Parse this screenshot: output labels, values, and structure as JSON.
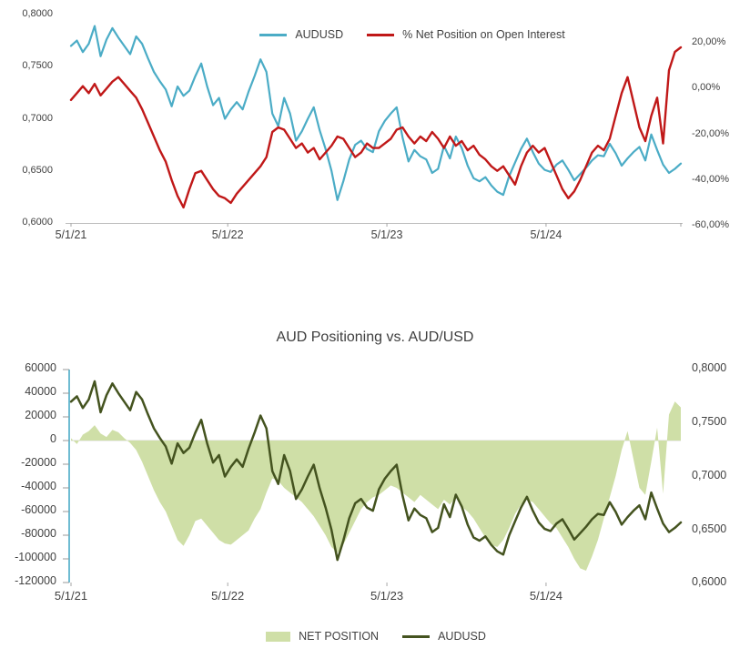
{
  "chart_data": [
    {
      "type": "line",
      "title": "",
      "x_tick_labels": [
        "5/1/21",
        "5/1/22",
        "5/1/23",
        "5/1/24"
      ],
      "left_axis": {
        "range": [
          0.6,
          0.8
        ],
        "ticks": [
          {
            "label": "0,8000",
            "value": 0.8
          },
          {
            "label": "0,7500",
            "value": 0.75
          },
          {
            "label": "0,7000",
            "value": 0.7
          },
          {
            "label": "0,6500",
            "value": 0.65
          },
          {
            "label": "0,6000",
            "value": 0.6
          }
        ]
      },
      "right_axis": {
        "range": [
          -60,
          20
        ],
        "ticks": [
          {
            "label": "20,00%",
            "value": 20
          },
          {
            "label": "0,00%",
            "value": 0
          },
          {
            "label": "-20,00%",
            "value": -20
          },
          {
            "label": "-40,00%",
            "value": -40
          },
          {
            "label": "-60,00%",
            "value": -60
          }
        ]
      },
      "series": [
        {
          "name": "AUDUSD",
          "axis": "left",
          "type": "line",
          "color": "#4BACC6",
          "width": 2.2,
          "values": [
            0.77,
            0.775,
            0.764,
            0.772,
            0.789,
            0.76,
            0.776,
            0.787,
            0.778,
            0.77,
            0.762,
            0.779,
            0.772,
            0.758,
            0.745,
            0.736,
            0.728,
            0.712,
            0.731,
            0.722,
            0.727,
            0.741,
            0.753,
            0.731,
            0.713,
            0.72,
            0.7,
            0.709,
            0.716,
            0.709,
            0.726,
            0.741,
            0.757,
            0.745,
            0.705,
            0.693,
            0.72,
            0.705,
            0.679,
            0.688,
            0.7,
            0.711,
            0.689,
            0.671,
            0.65,
            0.622,
            0.64,
            0.661,
            0.675,
            0.679,
            0.671,
            0.668,
            0.688,
            0.698,
            0.705,
            0.711,
            0.682,
            0.659,
            0.67,
            0.664,
            0.661,
            0.648,
            0.652,
            0.674,
            0.662,
            0.683,
            0.672,
            0.655,
            0.643,
            0.64,
            0.644,
            0.636,
            0.63,
            0.627,
            0.645,
            0.658,
            0.671,
            0.681,
            0.668,
            0.657,
            0.651,
            0.649,
            0.656,
            0.66,
            0.651,
            0.641,
            0.647,
            0.653,
            0.66,
            0.665,
            0.664,
            0.676,
            0.667,
            0.655,
            0.662,
            0.668,
            0.673,
            0.66,
            0.685,
            0.67,
            0.656,
            0.648,
            0.652,
            0.657
          ]
        },
        {
          "name": "% Net Position on Open Interest",
          "axis": "right",
          "type": "line",
          "color": "#C01818",
          "width": 2.4,
          "values": [
            -5,
            -2,
            1,
            -2,
            2,
            -3,
            0,
            3,
            5,
            2,
            -1,
            -4,
            -9,
            -15,
            -21,
            -27,
            -32,
            -40,
            -47,
            -52,
            -44,
            -37,
            -36,
            -40,
            -44,
            -47,
            -48,
            -50,
            -46,
            -43,
            -40,
            -37,
            -34,
            -30,
            -19,
            -17,
            -18,
            -22,
            -26,
            -24,
            -28,
            -26,
            -31,
            -28,
            -25,
            -21,
            -22,
            -26,
            -30,
            -28,
            -24,
            -26,
            -26,
            -24,
            -22,
            -18,
            -17,
            -21,
            -24,
            -21,
            -23,
            -19,
            -22,
            -26,
            -21,
            -25,
            -23,
            -27,
            -25,
            -29,
            -31,
            -34,
            -36,
            -34,
            -38,
            -42,
            -34,
            -28,
            -25,
            -28,
            -26,
            -32,
            -38,
            -44,
            -48,
            -45,
            -40,
            -34,
            -28,
            -25,
            -27,
            -22,
            -12,
            -2,
            5,
            -6,
            -17,
            -23,
            -12,
            -4,
            -24,
            8,
            16,
            18
          ]
        }
      ]
    },
    {
      "type": "area+line",
      "title": "AUD Positioning vs. AUD/USD",
      "x_tick_labels": [
        "5/1/21",
        "5/1/22",
        "5/1/23",
        "5/1/24"
      ],
      "left_axis": {
        "range": [
          -120000,
          60000
        ],
        "ticks": [
          {
            "label": "60000",
            "value": 60000
          },
          {
            "label": "40000",
            "value": 40000
          },
          {
            "label": "20000",
            "value": 20000
          },
          {
            "label": "0",
            "value": 0
          },
          {
            "label": "-20000",
            "value": -20000
          },
          {
            "label": "-40000",
            "value": -40000
          },
          {
            "label": "-60000",
            "value": -60000
          },
          {
            "label": "-80000",
            "value": -80000
          },
          {
            "label": "-100000",
            "value": -100000
          },
          {
            "label": "-120000",
            "value": -120000
          }
        ]
      },
      "right_axis": {
        "range": [
          0.6,
          0.8
        ],
        "ticks": [
          {
            "label": "0,8000",
            "value": 0.8
          },
          {
            "label": "0,7500",
            "value": 0.75
          },
          {
            "label": "0,7000",
            "value": 0.7
          },
          {
            "label": "0,6500",
            "value": 0.65
          },
          {
            "label": "0,6000",
            "value": 0.6
          }
        ]
      },
      "series": [
        {
          "name": "NET POSITION",
          "axis": "left",
          "type": "area",
          "color": "#CFDFA7",
          "values": [
            2000,
            -3000,
            5000,
            8000,
            13000,
            6000,
            3000,
            9000,
            7000,
            2000,
            -2000,
            -8000,
            -18000,
            -30000,
            -42000,
            -52000,
            -60000,
            -72000,
            -84000,
            -89000,
            -80000,
            -68000,
            -66000,
            -72000,
            -78000,
            -84000,
            -87000,
            -88000,
            -84000,
            -80000,
            -76000,
            -66000,
            -58000,
            -44000,
            -32000,
            -34000,
            -40000,
            -44000,
            -48000,
            -52000,
            -58000,
            -64000,
            -72000,
            -80000,
            -90000,
            -95000,
            -88000,
            -78000,
            -68000,
            -58000,
            -52000,
            -48000,
            -46000,
            -42000,
            -38000,
            -40000,
            -44000,
            -48000,
            -52000,
            -46000,
            -50000,
            -54000,
            -58000,
            -50000,
            -54000,
            -48000,
            -56000,
            -60000,
            -66000,
            -74000,
            -82000,
            -88000,
            -90000,
            -84000,
            -74000,
            -62000,
            -54000,
            -50000,
            -52000,
            -58000,
            -64000,
            -70000,
            -74000,
            -82000,
            -90000,
            -100000,
            -108000,
            -110000,
            -98000,
            -84000,
            -66000,
            -48000,
            -30000,
            -8000,
            8000,
            -16000,
            -40000,
            -46000,
            -18000,
            11000,
            -45000,
            22000,
            33000,
            28000
          ]
        },
        {
          "name": "AUDUSD",
          "axis": "right",
          "type": "line",
          "color": "#44531F",
          "width": 2.5,
          "values": [
            0.77,
            0.775,
            0.764,
            0.772,
            0.789,
            0.76,
            0.776,
            0.787,
            0.778,
            0.77,
            0.762,
            0.779,
            0.772,
            0.758,
            0.745,
            0.736,
            0.728,
            0.712,
            0.731,
            0.722,
            0.727,
            0.741,
            0.753,
            0.731,
            0.713,
            0.72,
            0.7,
            0.709,
            0.716,
            0.709,
            0.726,
            0.741,
            0.757,
            0.745,
            0.705,
            0.693,
            0.72,
            0.705,
            0.679,
            0.688,
            0.7,
            0.711,
            0.689,
            0.671,
            0.65,
            0.622,
            0.64,
            0.661,
            0.675,
            0.679,
            0.671,
            0.668,
            0.688,
            0.698,
            0.705,
            0.711,
            0.682,
            0.659,
            0.67,
            0.664,
            0.661,
            0.648,
            0.652,
            0.674,
            0.662,
            0.683,
            0.672,
            0.655,
            0.643,
            0.64,
            0.644,
            0.636,
            0.63,
            0.627,
            0.645,
            0.658,
            0.671,
            0.681,
            0.668,
            0.657,
            0.651,
            0.649,
            0.656,
            0.66,
            0.651,
            0.641,
            0.647,
            0.653,
            0.66,
            0.665,
            0.664,
            0.676,
            0.667,
            0.655,
            0.662,
            0.668,
            0.673,
            0.66,
            0.685,
            0.67,
            0.656,
            0.648,
            0.652,
            0.657
          ]
        }
      ]
    }
  ]
}
